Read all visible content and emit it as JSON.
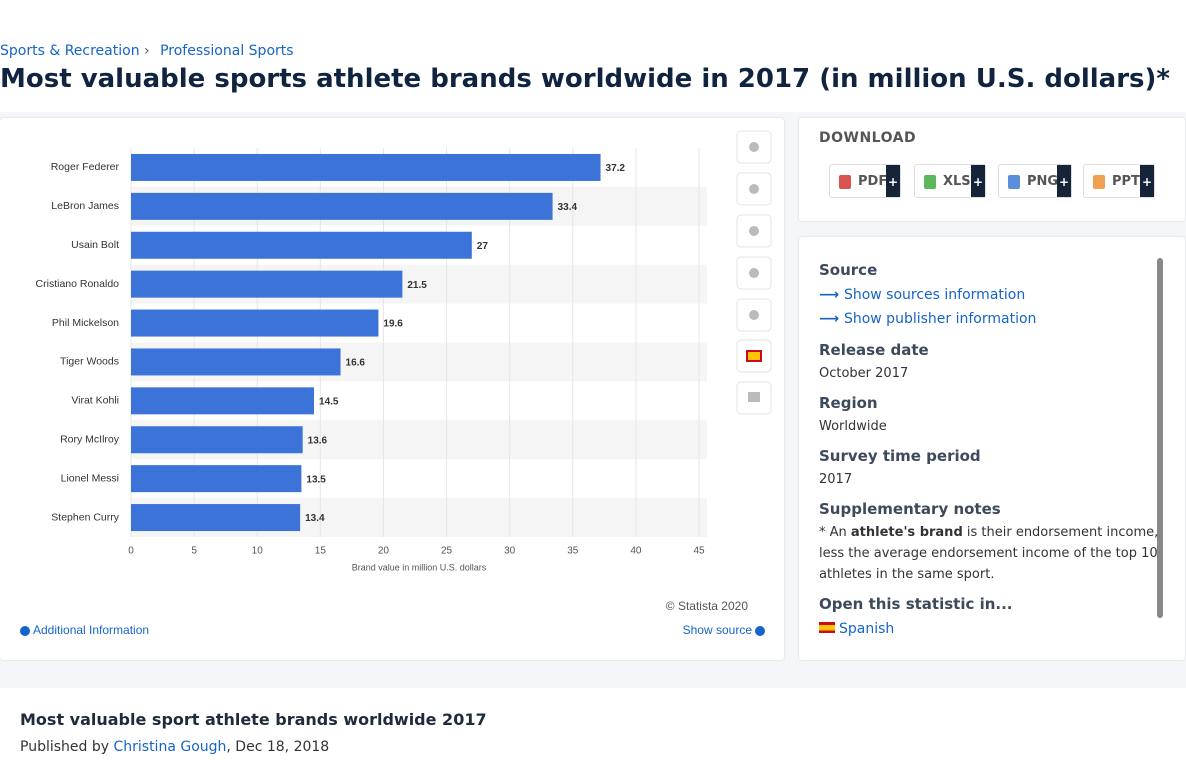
{
  "breadcrumb": [
    "Sports & Recreation",
    "Professional Sports"
  ],
  "title": "Most valuable sports athlete brands worldwide in 2017 (in million U.S. dollars)*",
  "chart_data": {
    "type": "bar",
    "orientation": "horizontal",
    "categories": [
      "Roger Federer",
      "LeBron James",
      "Usain Bolt",
      "Cristiano Ronaldo",
      "Phil Mickelson",
      "Tiger Woods",
      "Virat Kohli",
      "Rory McIlroy",
      "Lionel Messi",
      "Stephen Curry"
    ],
    "values": [
      37.2,
      33.4,
      27,
      21.5,
      19.6,
      16.6,
      14.5,
      13.6,
      13.5,
      13.4
    ],
    "color": "#3b73d9",
    "xlabel": "Brand value in million U.S. dollars",
    "xlim": [
      0,
      45
    ],
    "xticks": [
      0,
      5,
      10,
      15,
      20,
      25,
      30,
      35,
      40,
      45
    ],
    "grid": true
  },
  "chart_footer": {
    "credit": "© Statista 2020",
    "additional": "Additional Information",
    "source": "Show source"
  },
  "download": {
    "heading": "DOWNLOAD",
    "buttons": [
      "PDF",
      "XLS",
      "PNG",
      "PPT"
    ]
  },
  "info": {
    "source_heading": "Source",
    "source_links": [
      "Show sources information",
      "Show publisher information"
    ],
    "release_heading": "Release date",
    "release": "October 2017",
    "region_heading": "Region",
    "region": "Worldwide",
    "period_heading": "Survey time period",
    "period": "2017",
    "notes_heading": "Supplementary notes",
    "notes": [
      "* An ",
      "athlete's brand",
      " is their endorsement income, less the average endorsement income of the top 10 athletes in the same sport."
    ],
    "open_heading": "Open this statistic in...",
    "open_languages": [
      "Spanish"
    ]
  },
  "footer": {
    "title": "Most valuable sport athlete brands worldwide 2017",
    "published_by": "Published by",
    "author": "Christina Gough",
    "date": ", Dec 18, 2018"
  }
}
